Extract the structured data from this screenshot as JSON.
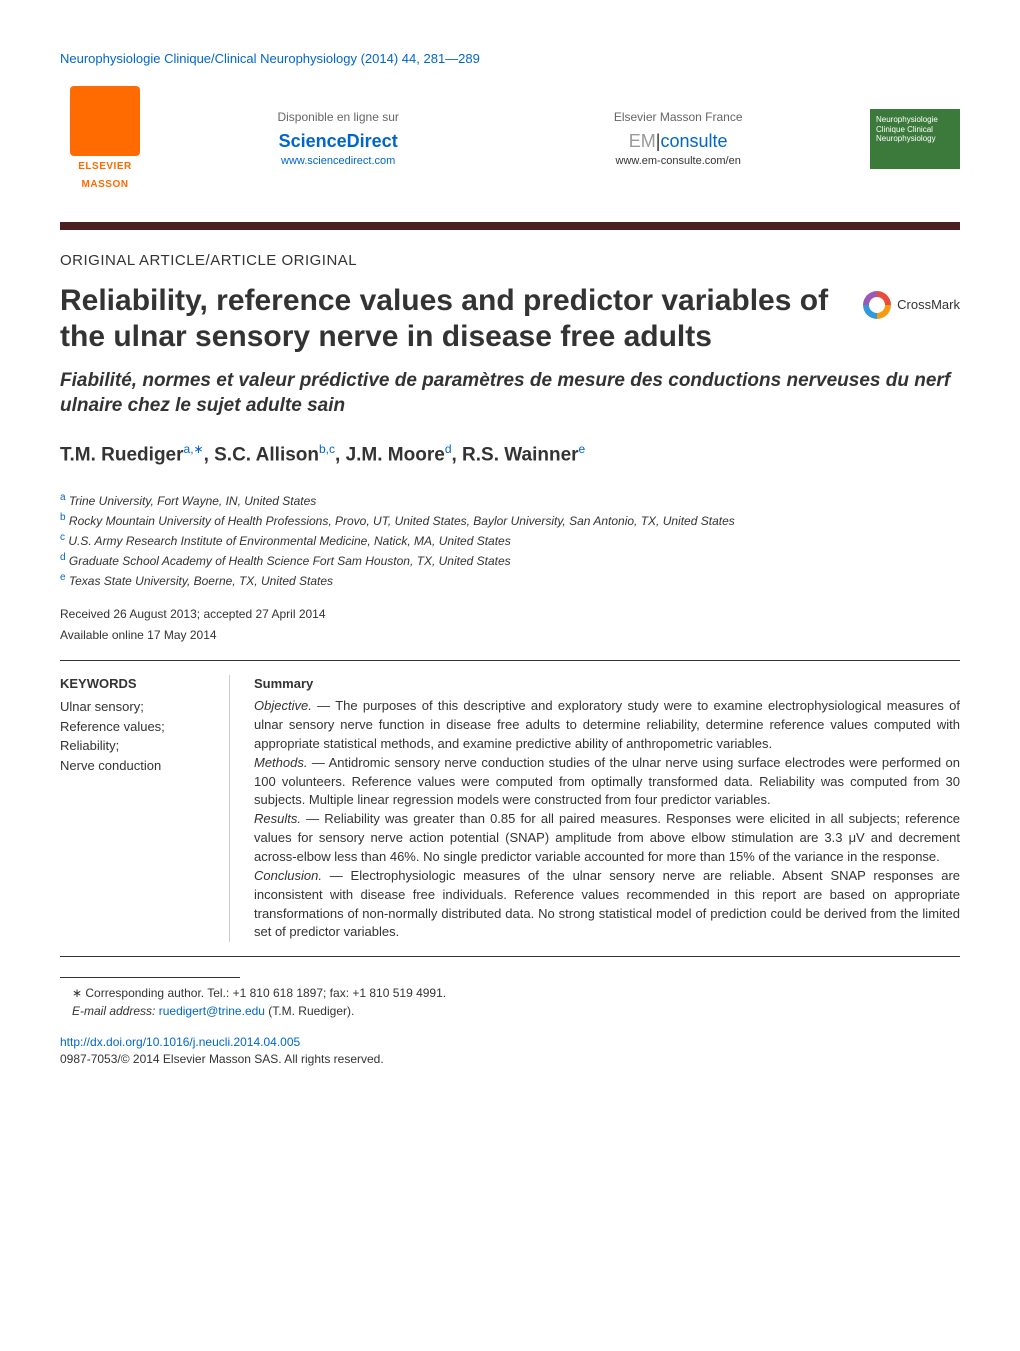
{
  "journal_header": "Neurophysiologie Clinique/Clinical Neurophysiology (2014) 44, 281—289",
  "banner": {
    "elsevier_name": "ELSEVIER",
    "elsevier_sub": "MASSON",
    "left_label": "Disponible en ligne sur",
    "left_brand": "ScienceDirect",
    "left_url": "www.sciencedirect.com",
    "right_label": "Elsevier Masson France",
    "right_brand_em": "EM",
    "right_brand_consulte": "consulte",
    "right_url": "www.em-consulte.com/en",
    "badge_text": "Neurophysiologie Clinique Clinical Neurophysiology"
  },
  "article_type": "ORIGINAL ARTICLE/ARTICLE ORIGINAL",
  "title": "Reliability, reference values and predictor variables of the ulnar sensory nerve in disease free adults",
  "subtitle": "Fiabilité, normes et valeur prédictive de paramètres de mesure des conductions nerveuses du nerf ulnaire chez le sujet adulte sain",
  "crossmark_label": "CrossMark",
  "authors_html": "T.M. Ruediger",
  "author_list": [
    {
      "name": "T.M. Ruediger",
      "sup": "a,∗"
    },
    {
      "name": "S.C. Allison",
      "sup": "b,c"
    },
    {
      "name": "J.M. Moore",
      "sup": "d"
    },
    {
      "name": "R.S. Wainner",
      "sup": "e"
    }
  ],
  "affiliations": [
    {
      "sup": "a",
      "text": "Trine University, Fort Wayne, IN, United States"
    },
    {
      "sup": "b",
      "text": "Rocky Mountain University of Health Professions, Provo, UT, United States, Baylor University, San Antonio, TX, United States"
    },
    {
      "sup": "c",
      "text": "U.S. Army Research Institute of Environmental Medicine, Natick, MA, United States"
    },
    {
      "sup": "d",
      "text": "Graduate School Academy of Health Science Fort Sam Houston, TX, United States"
    },
    {
      "sup": "e",
      "text": "Texas State University, Boerne, TX, United States"
    }
  ],
  "received": "Received 26 August 2013; accepted 27 April 2014",
  "available": "Available online 17 May 2014",
  "keywords_heading": "KEYWORDS",
  "keywords": "Ulnar sensory;\nReference values;\nReliability;\nNerve conduction",
  "summary_heading": "Summary",
  "summary_sections": [
    {
      "label": "Objective.",
      "text": " — The purposes of this descriptive and exploratory study were to examine electrophysiological measures of ulnar sensory nerve function in disease free adults to determine reliability, determine reference values computed with appropriate statistical methods, and examine predictive ability of anthropometric variables."
    },
    {
      "label": "Methods.",
      "text": " — Antidromic sensory nerve conduction studies of the ulnar nerve using surface electrodes were performed on 100 volunteers. Reference values were computed from optimally transformed data. Reliability was computed from 30 subjects. Multiple linear regression models were constructed from four predictor variables."
    },
    {
      "label": "Results.",
      "text": " — Reliability was greater than 0.85 for all paired measures. Responses were elicited in all subjects; reference values for sensory nerve action potential (SNAP) amplitude from above elbow stimulation are 3.3 μV and decrement across-elbow less than 46%. No single predictor variable accounted for more than 15% of the variance in the response."
    },
    {
      "label": "Conclusion.",
      "text": " — Electrophysiologic measures of the ulnar sensory nerve are reliable. Absent SNAP responses are inconsistent with disease free individuals. Reference values recommended in this report are based on appropriate transformations of non-normally distributed data. No strong statistical model of prediction could be derived from the limited set of predictor variables."
    }
  ],
  "footnote": {
    "corresponding": "∗ Corresponding author. Tel.: +1 810 618 1897; fax: +1 810 519 4991.",
    "email_label": "E-mail address:",
    "email": "ruedigert@trine.edu",
    "email_suffix": " (T.M. Ruediger)."
  },
  "doi": "http://dx.doi.org/10.1016/j.neucli.2014.04.005",
  "copyright": "0987-7053/© 2014 Elsevier Masson SAS. All rights reserved."
}
